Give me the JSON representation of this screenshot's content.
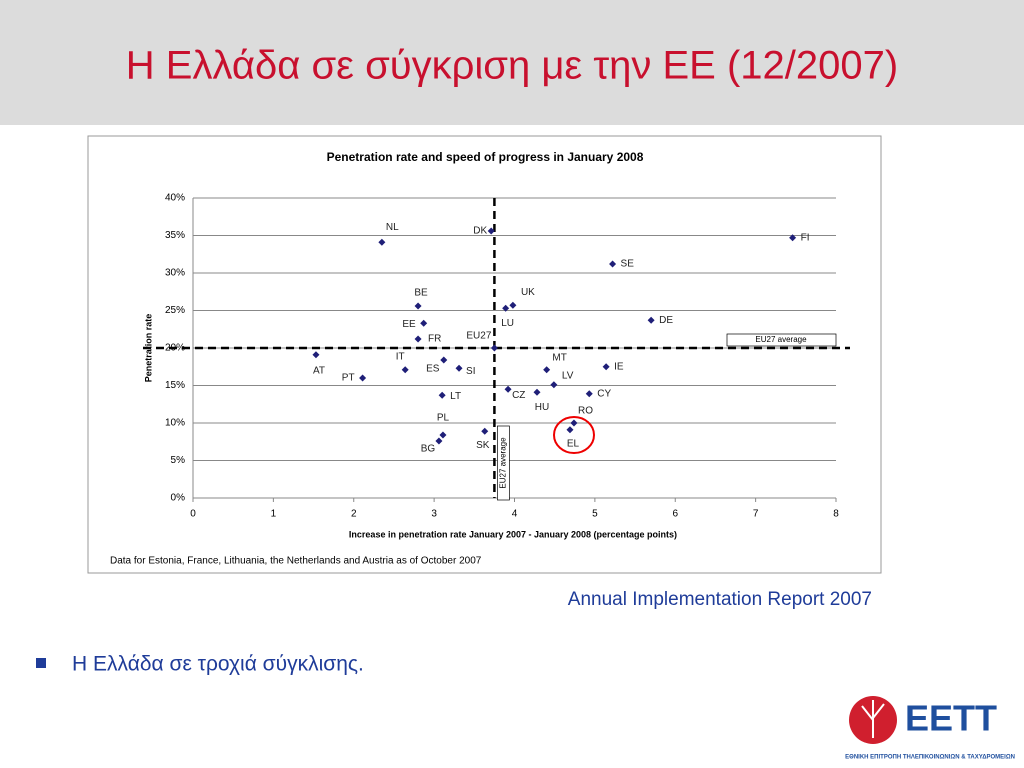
{
  "slide": {
    "title": "Η Ελλάδα σε σύγκριση με την ΕΕ (12/2007)",
    "source": "Annual Implementation Report 2007",
    "bullets": [
      "Η Ελλάδα σε τροχιά σύγκλισης."
    ],
    "logo": {
      "name": "ΕΕΤΤ",
      "subtitle": "ΕΘΝΙΚΗ ΕΠΙΤΡΟΠΗ ΤΗΛΕΠΙΚΟΙΝΩΝΙΩΝ & ΤΑΧΥΔΡΟΜΕΙΩΝ"
    }
  },
  "chart_data": {
    "type": "scatter",
    "title": "Penetration rate and speed of progress in January 2008",
    "xlabel": "Increase in penetration rate January 2007 - January 2008 (percentage points)",
    "ylabel": "Penetration rate",
    "note": "Data for Estonia, France, Lithuania, the Netherlands and Austria as of October 2007",
    "color": "#1f1f78",
    "point_labels": [
      "NL",
      "DK",
      "FI",
      "SE",
      "BE",
      "UK",
      "LU",
      "DE",
      "EE",
      "FR",
      "EU27",
      "AT",
      "IT",
      "ES",
      "SI",
      "PT",
      "MT",
      "IE",
      "LV",
      "CZ",
      "HU",
      "CY",
      "LT",
      "RO",
      "EL",
      "SK",
      "PL",
      "BG"
    ],
    "x": [
      2.35,
      3.71,
      7.46,
      5.22,
      2.8,
      3.98,
      3.89,
      5.7,
      2.87,
      2.8,
      3.75,
      1.53,
      2.64,
      3.12,
      3.31,
      2.11,
      4.4,
      5.14,
      4.49,
      3.92,
      4.28,
      4.93,
      3.1,
      4.74,
      4.69,
      3.63,
      3.11,
      3.06
    ],
    "values": [
      34.1,
      35.6,
      34.7,
      31.2,
      25.6,
      25.7,
      25.3,
      23.7,
      23.3,
      21.2,
      20,
      19.1,
      17.1,
      18.4,
      17.3,
      16,
      17.1,
      17.5,
      15.1,
      14.5,
      14.1,
      13.9,
      13.7,
      10,
      9.1,
      8.9,
      8.4,
      7.6
    ],
    "average": {
      "x": 3.75,
      "y": 20,
      "label": "EU27 average"
    },
    "xlim": [
      0,
      8
    ],
    "ylim": [
      0,
      40
    ],
    "xticks": [
      0,
      1,
      2,
      3,
      4,
      5,
      6,
      7,
      8
    ],
    "yticks": [
      {
        "value": 0,
        "label": "0%"
      },
      {
        "value": 5,
        "label": "5%"
      },
      {
        "value": 10,
        "label": "10%"
      },
      {
        "value": 15,
        "label": "15%"
      },
      {
        "value": 20,
        "label": "20%"
      },
      {
        "value": 25,
        "label": "25%"
      },
      {
        "value": 30,
        "label": "30%"
      },
      {
        "value": 35,
        "label": "35%"
      },
      {
        "value": 40,
        "label": "40%"
      }
    ],
    "grid": true
  }
}
